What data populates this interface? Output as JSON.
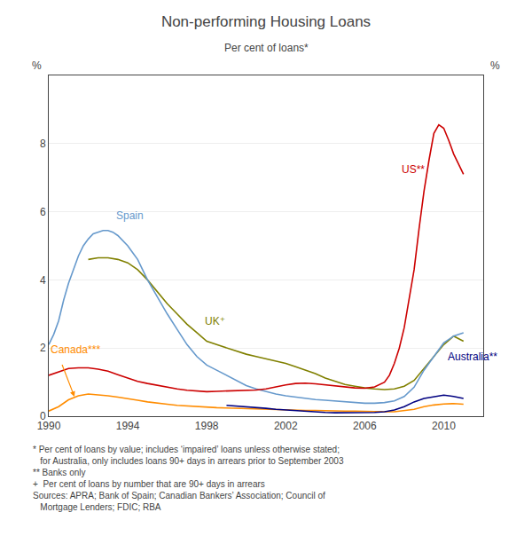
{
  "chart_data": {
    "type": "line",
    "title": "Non-performing Housing Loans",
    "subtitle": "Per cent of loans*",
    "ylabel": "%",
    "y2label": "%",
    "xlim": [
      1990,
      2012
    ],
    "xticks": [
      1990,
      1994,
      1998,
      2002,
      2006,
      2010
    ],
    "ylim": [
      0,
      10
    ],
    "yticks": [
      0,
      2,
      4,
      6,
      8
    ],
    "y2lim": [
      0,
      10
    ],
    "y2ticks": [
      0,
      2,
      4,
      6,
      8
    ],
    "grid": true,
    "footnotes": "* Per cent of loans by value; includes ‘impaired’ loans unless otherwise stated;\n   for Australia, only includes loans 90+ days in arrears prior to September 2003\n** Banks only\n+  Per cent of loans by number that are 90+ days in arrears\nSources: APRA; Bank of Spain; Canadian Bankers’ Association; Council of\n   Mortgage Lenders; FDIC; RBA",
    "series": [
      {
        "name": "UK⁺",
        "color": "#808000",
        "label_x": 1997.8,
        "label_y": 2.55,
        "x": [
          1992.0,
          1992.5,
          1993.0,
          1993.5,
          1994.0,
          1994.5,
          1995.0,
          1995.5,
          1996.0,
          1996.5,
          1997.0,
          1997.5,
          1998.0,
          1998.5,
          1999.0,
          1999.5,
          2000.0,
          2000.5,
          2001.0,
          2001.5,
          2002.0,
          2002.5,
          2003.0,
          2003.5,
          2004.0,
          2004.5,
          2005.0,
          2005.5,
          2006.0,
          2006.5,
          2007.0,
          2007.5,
          2008.0,
          2008.5,
          2009.0,
          2009.5,
          2010.0,
          2010.5,
          2011.0
        ],
        "values": [
          4.6,
          4.65,
          4.65,
          4.6,
          4.5,
          4.3,
          4.0,
          3.65,
          3.3,
          3.0,
          2.7,
          2.45,
          2.2,
          2.1,
          2.0,
          1.9,
          1.82,
          1.75,
          1.68,
          1.62,
          1.55,
          1.45,
          1.35,
          1.25,
          1.12,
          1.02,
          0.93,
          0.88,
          0.83,
          0.8,
          0.78,
          0.8,
          0.88,
          1.05,
          1.4,
          1.78,
          2.1,
          2.35,
          2.2
        ]
      },
      {
        "name": "Spain",
        "color": "#6699CC",
        "label_x": 1993.3,
        "label_y": 5.65,
        "x": [
          1990.0,
          1990.25,
          1990.5,
          1990.75,
          1991.0,
          1991.25,
          1991.5,
          1991.75,
          1992.0,
          1992.25,
          1992.5,
          1992.75,
          1993.0,
          1993.25,
          1993.5,
          1993.75,
          1994.0,
          1994.25,
          1994.5,
          1994.75,
          1995.0,
          1995.5,
          1996.0,
          1996.5,
          1997.0,
          1997.5,
          1998.0,
          1998.5,
          1999.0,
          1999.5,
          2000.0,
          2000.5,
          2001.0,
          2001.5,
          2002.0,
          2002.5,
          2003.0,
          2003.5,
          2004.0,
          2004.5,
          2005.0,
          2005.5,
          2006.0,
          2006.5,
          2007.0,
          2007.5,
          2008.0,
          2008.5,
          2009.0,
          2009.5,
          2010.0,
          2010.5,
          2011.0
        ],
        "values": [
          2.1,
          2.4,
          2.8,
          3.4,
          3.9,
          4.3,
          4.7,
          5.0,
          5.2,
          5.35,
          5.4,
          5.45,
          5.45,
          5.4,
          5.3,
          5.15,
          5.0,
          4.8,
          4.6,
          4.3,
          4.0,
          3.5,
          3.0,
          2.55,
          2.1,
          1.75,
          1.5,
          1.35,
          1.2,
          1.05,
          0.9,
          0.8,
          0.72,
          0.65,
          0.6,
          0.56,
          0.52,
          0.49,
          0.47,
          0.45,
          0.42,
          0.4,
          0.38,
          0.38,
          0.4,
          0.45,
          0.58,
          0.85,
          1.35,
          1.75,
          2.15,
          2.35,
          2.45
        ]
      },
      {
        "name": "Canada***",
        "color": "#FF8C00",
        "label_x": 1990.0,
        "label_y": 1.72,
        "arrow": {
          "from": [
            1990.65,
            1.55
          ],
          "to": [
            1991.3,
            0.57
          ]
        },
        "x": [
          1990.0,
          1990.5,
          1991.0,
          1991.5,
          1992.0,
          1992.5,
          1993.0,
          1993.5,
          1994.0,
          1994.5,
          1995.0,
          1995.5,
          1996.0,
          1996.5,
          1997.0,
          1997.5,
          1998.0,
          1998.5,
          1999.0,
          1999.5,
          2000.0,
          2000.5,
          2001.0,
          2001.5,
          2002.0,
          2002.5,
          2003.0,
          2003.5,
          2004.0,
          2004.5,
          2005.0,
          2005.5,
          2006.0,
          2006.5,
          2007.0,
          2007.5,
          2008.0,
          2008.5,
          2009.0,
          2009.5,
          2010.0,
          2010.5,
          2011.0
        ],
        "values": [
          0.15,
          0.28,
          0.48,
          0.6,
          0.65,
          0.63,
          0.6,
          0.56,
          0.52,
          0.47,
          0.42,
          0.38,
          0.35,
          0.32,
          0.3,
          0.28,
          0.26,
          0.25,
          0.24,
          0.23,
          0.22,
          0.21,
          0.21,
          0.2,
          0.19,
          0.18,
          0.17,
          0.17,
          0.16,
          0.16,
          0.15,
          0.15,
          0.14,
          0.14,
          0.13,
          0.13,
          0.16,
          0.2,
          0.28,
          0.33,
          0.36,
          0.37,
          0.35
        ]
      },
      {
        "name": "US**",
        "color": "#CC0000",
        "label_x": 2007.8,
        "label_y": 7.0,
        "x": [
          1990.0,
          1990.5,
          1991.0,
          1991.5,
          1992.0,
          1992.5,
          1993.0,
          1993.5,
          1994.0,
          1994.5,
          1995.0,
          1995.5,
          1996.0,
          1996.5,
          1997.0,
          1997.5,
          1998.0,
          1998.5,
          1999.0,
          1999.5,
          2000.0,
          2000.5,
          2001.0,
          2001.5,
          2002.0,
          2002.5,
          2003.0,
          2003.5,
          2004.0,
          2004.5,
          2005.0,
          2005.5,
          2006.0,
          2006.5,
          2007.0,
          2007.25,
          2007.5,
          2007.75,
          2008.0,
          2008.25,
          2008.5,
          2008.75,
          2009.0,
          2009.25,
          2009.5,
          2009.75,
          2010.0,
          2010.25,
          2010.5,
          2010.75,
          2011.0
        ],
        "values": [
          1.2,
          1.3,
          1.4,
          1.42,
          1.42,
          1.38,
          1.32,
          1.22,
          1.12,
          1.02,
          0.96,
          0.9,
          0.86,
          0.8,
          0.76,
          0.74,
          0.72,
          0.73,
          0.74,
          0.75,
          0.76,
          0.77,
          0.8,
          0.86,
          0.92,
          0.96,
          0.97,
          0.95,
          0.92,
          0.88,
          0.85,
          0.83,
          0.82,
          0.86,
          1.0,
          1.2,
          1.55,
          2.0,
          2.6,
          3.4,
          4.3,
          5.5,
          6.6,
          7.5,
          8.3,
          8.55,
          8.45,
          8.1,
          7.7,
          7.4,
          7.1
        ]
      },
      {
        "name": "Australia**",
        "color": "#000080",
        "label_x": 2010.1,
        "label_y": 1.5,
        "x": [
          1999.0,
          1999.5,
          2000.0,
          2000.5,
          2001.0,
          2001.5,
          2002.0,
          2002.5,
          2003.0,
          2003.5,
          2004.0,
          2004.5,
          2005.0,
          2005.5,
          2006.0,
          2006.5,
          2007.0,
          2007.5,
          2008.0,
          2008.5,
          2009.0,
          2009.5,
          2010.0,
          2010.5,
          2011.0
        ],
        "values": [
          0.32,
          0.3,
          0.27,
          0.25,
          0.23,
          0.2,
          0.18,
          0.16,
          0.14,
          0.13,
          0.11,
          0.1,
          0.1,
          0.1,
          0.1,
          0.11,
          0.13,
          0.18,
          0.28,
          0.42,
          0.52,
          0.58,
          0.62,
          0.58,
          0.52
        ]
      }
    ]
  }
}
